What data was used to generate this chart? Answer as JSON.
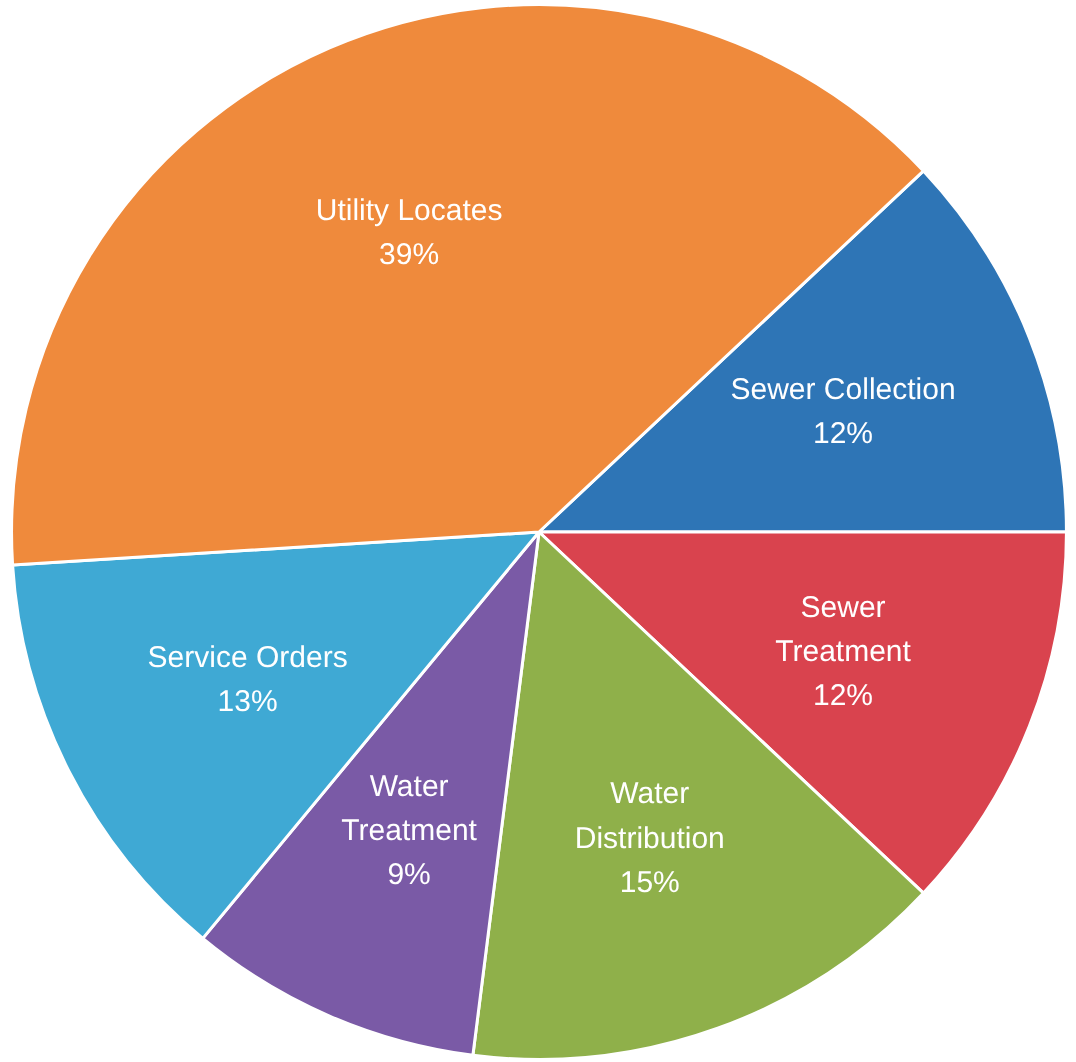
{
  "chart_data": {
    "type": "pie",
    "categories": [
      "Sewer Collection",
      "Sewer\nTreatment",
      "Water\nDistribution",
      "Water\nTreatment",
      "Service Orders",
      "Utility Locates"
    ],
    "values": [
      12,
      12,
      15,
      9,
      13,
      39
    ],
    "colors": [
      "#2e75b6",
      "#d9434e",
      "#8fb04a",
      "#7a5aa6",
      "#3fa9d4",
      "#ef8a3c"
    ],
    "value_labels": [
      "12%",
      "12%",
      "15%",
      "9%",
      "13%",
      "39%"
    ]
  }
}
